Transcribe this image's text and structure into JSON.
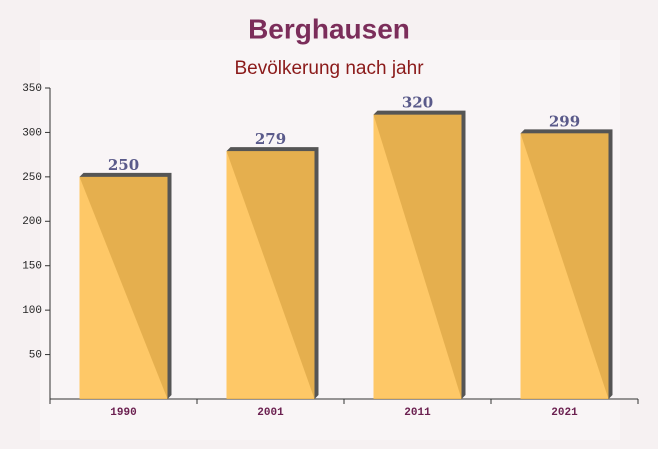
{
  "chart_data": {
    "type": "bar",
    "title": "Berghausen",
    "subtitle": "Bevölkerung nach jahr",
    "categories": [
      "1990",
      "2001",
      "2011",
      "2021"
    ],
    "values": [
      250,
      279,
      320,
      299
    ],
    "color": "#ffc04d",
    "ylim": [
      0,
      350
    ],
    "yticks": [
      50,
      100,
      150,
      200,
      250,
      300,
      350
    ]
  }
}
